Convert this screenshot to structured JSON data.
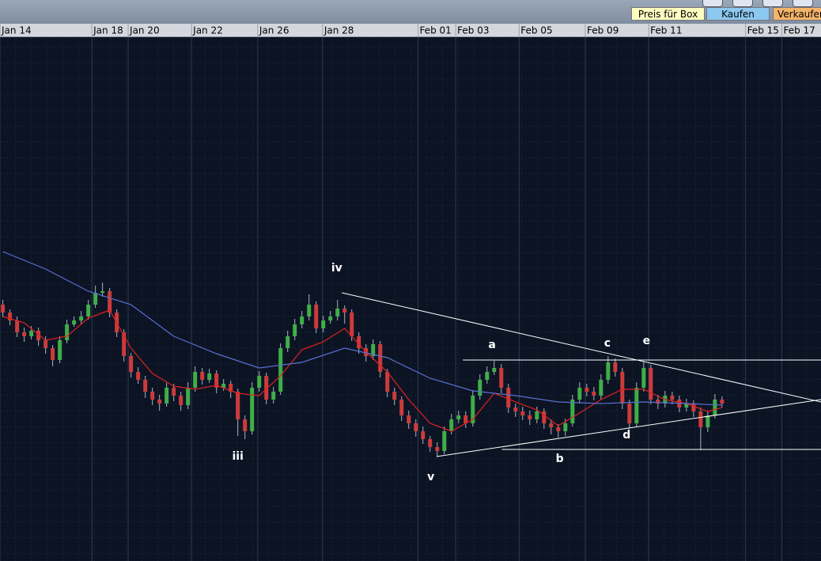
{
  "toolbar": {
    "buttons": [
      "Preis für Box",
      "Kaufen",
      "Verkaufen"
    ]
  },
  "chart_data": {
    "type": "candlestick",
    "xlim": [
      -0.4,
      114.9
    ],
    "xticks": [
      {
        "value": -0.4,
        "label": "Jan 14"
      },
      {
        "value": 12.5,
        "label": "Jan 18"
      },
      {
        "value": 17.6,
        "label": "Jan 20"
      },
      {
        "value": 26.5,
        "label": "Jan 22"
      },
      {
        "value": 35.8,
        "label": "Jan 26"
      },
      {
        "value": 44.9,
        "label": "Jan 28"
      },
      {
        "value": 58.3,
        "label": "Feb 01"
      },
      {
        "value": 63.6,
        "label": "Feb 03"
      },
      {
        "value": 72.5,
        "label": "Feb 05"
      },
      {
        "value": 81.8,
        "label": "Feb 09"
      },
      {
        "value": 90.7,
        "label": "Feb 11"
      },
      {
        "value": 104.3,
        "label": "Feb 15"
      },
      {
        "value": 109.4,
        "label": "Feb 17"
      }
    ],
    "ylim": [
      0,
      662
    ],
    "grid": true,
    "up_color": "#3fae49",
    "down_color": "#cc3b3b",
    "wick_color": "#a9b3c2",
    "x": [
      0,
      1,
      2,
      3,
      4,
      5,
      6,
      7,
      8,
      9,
      10,
      11,
      12,
      13,
      14,
      15,
      16,
      17,
      18,
      19,
      20,
      21,
      22,
      23,
      24,
      25,
      26,
      27,
      28,
      29,
      30,
      31,
      32,
      33,
      34,
      35,
      36,
      37,
      38,
      39,
      40,
      41,
      42,
      43,
      44,
      45,
      46,
      47,
      48,
      49,
      50,
      51,
      52,
      53,
      54,
      55,
      56,
      57,
      58,
      59,
      60,
      61,
      62,
      63,
      64,
      65,
      66,
      67,
      68,
      69,
      70,
      71,
      72,
      73,
      74,
      75,
      76,
      77,
      78,
      79,
      80,
      81,
      82,
      83,
      84,
      85,
      86,
      87,
      88,
      89,
      90,
      91,
      92,
      93,
      94,
      95,
      96,
      97,
      98,
      99,
      100,
      101
    ],
    "open": [
      324,
      314,
      304,
      289,
      284,
      291,
      279,
      269,
      254,
      279,
      299,
      304,
      309,
      324,
      339,
      341,
      314,
      289,
      259,
      239,
      229,
      214,
      204,
      199,
      219,
      209,
      197,
      219,
      239,
      229,
      237,
      219,
      224,
      214,
      179,
      164,
      219,
      234,
      204,
      214,
      269,
      284,
      299,
      309,
      324,
      294,
      304,
      309,
      319,
      314,
      284,
      269,
      259,
      274,
      239,
      214,
      204,
      184,
      174,
      164,
      154,
      144,
      139,
      164,
      179,
      184,
      174,
      209,
      229,
      239,
      244,
      219,
      194,
      189,
      184,
      179,
      189,
      174,
      169,
      164,
      174,
      204,
      219,
      214,
      209,
      229,
      251,
      239,
      199,
      174,
      219,
      244,
      204,
      199,
      209,
      204,
      194,
      199,
      189,
      169,
      184,
      204
    ],
    "high": [
      330,
      318,
      309,
      295,
      297,
      295,
      284,
      273,
      284,
      305,
      309,
      316,
      330,
      348,
      352,
      345,
      318,
      293,
      263,
      245,
      234,
      219,
      210,
      225,
      224,
      214,
      226,
      246,
      244,
      243,
      241,
      230,
      228,
      218,
      184,
      226,
      240,
      238,
      220,
      275,
      291,
      306,
      316,
      337,
      328,
      310,
      316,
      330,
      323,
      318,
      289,
      274,
      280,
      278,
      243,
      219,
      208,
      190,
      179,
      170,
      158,
      150,
      170,
      186,
      190,
      189,
      216,
      236,
      246,
      253,
      249,
      224,
      199,
      195,
      190,
      195,
      193,
      179,
      173,
      180,
      210,
      226,
      224,
      220,
      236,
      259,
      256,
      244,
      204,
      226,
      252,
      248,
      210,
      215,
      214,
      209,
      205,
      203,
      194,
      190,
      211,
      208
    ],
    "low": [
      308,
      298,
      283,
      277,
      280,
      272,
      262,
      246,
      250,
      275,
      296,
      300,
      305,
      320,
      334,
      308,
      283,
      252,
      232,
      224,
      206,
      197,
      190,
      195,
      202,
      190,
      192,
      214,
      223,
      225,
      212,
      215,
      206,
      158,
      154,
      160,
      214,
      198,
      199,
      210,
      264,
      279,
      294,
      304,
      288,
      289,
      300,
      304,
      300,
      278,
      262,
      252,
      254,
      232,
      207,
      197,
      177,
      167,
      157,
      148,
      138,
      132,
      135,
      160,
      174,
      168,
      170,
      204,
      224,
      235,
      212,
      187,
      182,
      178,
      172,
      174,
      167,
      160,
      156,
      158,
      170,
      199,
      208,
      203,
      204,
      224,
      233,
      192,
      167,
      170,
      214,
      198,
      192,
      194,
      198,
      188,
      189,
      182,
      140,
      163,
      180,
      194
    ],
    "close": [
      314,
      304,
      289,
      284,
      291,
      279,
      269,
      254,
      279,
      299,
      304,
      309,
      324,
      339,
      341,
      314,
      289,
      259,
      239,
      229,
      214,
      204,
      199,
      219,
      209,
      197,
      219,
      239,
      229,
      237,
      219,
      224,
      214,
      179,
      164,
      219,
      234,
      204,
      214,
      269,
      284,
      299,
      309,
      324,
      294,
      304,
      309,
      319,
      314,
      284,
      269,
      259,
      274,
      239,
      214,
      204,
      184,
      174,
      164,
      154,
      144,
      139,
      164,
      179,
      184,
      174,
      209,
      229,
      239,
      244,
      219,
      194,
      189,
      184,
      179,
      189,
      174,
      169,
      164,
      174,
      204,
      219,
      214,
      209,
      229,
      251,
      239,
      199,
      174,
      219,
      244,
      204,
      199,
      209,
      204,
      194,
      199,
      189,
      169,
      184,
      204,
      199
    ],
    "series": [
      {
        "color": "#e02020",
        "x": [
          0,
          3,
          6,
          9,
          12,
          15,
          18,
          21,
          24,
          27,
          30,
          33,
          36,
          39,
          42,
          45,
          48,
          51,
          54,
          57,
          60,
          63,
          66,
          69,
          72,
          75,
          78,
          81,
          84,
          87,
          90,
          93,
          96,
          99,
          101
        ],
        "values": [
          309,
          301,
          279,
          284,
          307,
          317,
          269,
          237,
          221,
          217,
          222,
          212,
          209,
          234,
          267,
          277,
          294,
          264,
          239,
          204,
          174,
          164,
          179,
          212,
          201,
          191,
          171,
          187,
          204,
          217,
          217,
          204,
          199,
          189,
          194
        ]
      },
      {
        "color": "#5a6fd0",
        "x": [
          0,
          6,
          12,
          18,
          24,
          30,
          36,
          42,
          48,
          54,
          60,
          66,
          72,
          78,
          84,
          90,
          96,
          101
        ],
        "values": [
          391,
          369,
          341,
          324,
          284,
          262,
          244,
          251,
          269,
          257,
          231,
          215,
          209,
          201,
          199,
          201,
          199,
          197
        ]
      }
    ],
    "lines": [
      {
        "color": "#ffffff",
        "x": [
          47.6,
          114.9
        ],
        "y": [
          339,
          201
        ]
      },
      {
        "color": "#ffffff",
        "x": [
          60.9,
          114.9
        ],
        "y": [
          132,
          204
        ]
      },
      {
        "color": "#ffffff",
        "x": [
          64.6,
          114.9
        ],
        "y": [
          254,
          254
        ]
      },
      {
        "color": "#ffffff",
        "x": [
          70.1,
          114.9
        ],
        "y": [
          141,
          141
        ]
      }
    ],
    "annotations": [
      {
        "text": "iv",
        "x": 46.9,
        "y": 370
      },
      {
        "text": "iii",
        "x": 33,
        "y": 132
      },
      {
        "text": "v",
        "x": 60.1,
        "y": 106
      },
      {
        "text": "a",
        "x": 68.7,
        "y": 273
      },
      {
        "text": "b",
        "x": 78.2,
        "y": 129
      },
      {
        "text": "c",
        "x": 84.9,
        "y": 275
      },
      {
        "text": "d",
        "x": 87.6,
        "y": 159
      },
      {
        "text": "e",
        "x": 90.4,
        "y": 278
      }
    ]
  }
}
